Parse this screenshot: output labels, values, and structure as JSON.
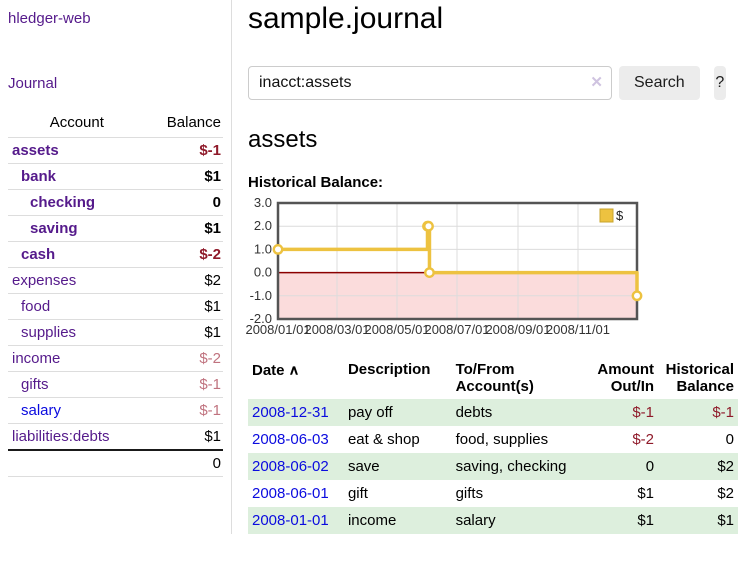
{
  "app": {
    "title": "hledger-web"
  },
  "sidebar": {
    "nav_journal": "Journal",
    "accounts": {
      "headers": {
        "account": "Account",
        "balance": "Balance"
      },
      "rows": [
        {
          "name": "assets",
          "indent": 1,
          "bold": true,
          "balance": "$-1",
          "balance_style": "neg-strong"
        },
        {
          "name": "bank",
          "indent": 2,
          "bold": true,
          "balance": "$1",
          "balance_style": ""
        },
        {
          "name": "checking",
          "indent": 3,
          "bold": true,
          "balance": "0",
          "balance_style": ""
        },
        {
          "name": "saving",
          "indent": 3,
          "bold": true,
          "balance": "$1",
          "balance_style": ""
        },
        {
          "name": "cash",
          "indent": 2,
          "bold": true,
          "balance": "$-2",
          "balance_style": "neg-strong"
        },
        {
          "name": "expenses",
          "indent": 1,
          "bold": false,
          "balance": "$2",
          "balance_style": ""
        },
        {
          "name": "food",
          "indent": 2,
          "bold": false,
          "balance": "$1",
          "balance_style": ""
        },
        {
          "name": "supplies",
          "indent": 2,
          "bold": false,
          "balance": "$1",
          "balance_style": ""
        },
        {
          "name": "income",
          "indent": 1,
          "bold": false,
          "balance": "$-2",
          "balance_style": "neg-soft"
        },
        {
          "name": "gifts",
          "indent": 2,
          "bold": false,
          "balance": "$-1",
          "balance_style": "neg-soft"
        },
        {
          "name": "salary",
          "indent": 2,
          "bold": false,
          "name_style": "unvisited",
          "balance": "$-1",
          "balance_style": "neg-soft"
        },
        {
          "name": "liabilities:debts",
          "indent": 1,
          "bold": false,
          "balance": "$1",
          "balance_style": ""
        }
      ],
      "total": "0"
    }
  },
  "main": {
    "title": "sample.journal",
    "search": {
      "value": "inacct:assets",
      "clear_icon": "✕",
      "button": "Search",
      "help": "?"
    },
    "account_heading": "assets",
    "chart_label": "Historical Balance:"
  },
  "chart_data": {
    "type": "line",
    "step": true,
    "title": "Historical Balance",
    "x_range": [
      "2008-01-01",
      "2008-12-31"
    ],
    "ylim": [
      -2,
      3
    ],
    "grid": true,
    "legend_position": "top-right",
    "legend": {
      "label": "$",
      "color": "#edc240"
    },
    "y_ticks": [
      {
        "v": 3,
        "label": "3.0"
      },
      {
        "v": 2,
        "label": "2.0"
      },
      {
        "v": 1,
        "label": "1.0"
      },
      {
        "v": 0,
        "label": "0.0"
      },
      {
        "v": -1,
        "label": "-1.0"
      },
      {
        "v": -2,
        "label": "-2.0"
      }
    ],
    "x_ticks": [
      {
        "date": "2008-01-01",
        "label": "2008/01/01"
      },
      {
        "date": "2008-03-01",
        "label": "2008/03/01"
      },
      {
        "date": "2008-05-01",
        "label": "2008/05/01"
      },
      {
        "date": "2008-07-01",
        "label": "2008/07/01"
      },
      {
        "date": "2008-09-01",
        "label": "2008/09/01"
      },
      {
        "date": "2008-11-01",
        "label": "2008/11/01"
      }
    ],
    "series": [
      {
        "name": "$",
        "color": "#edc240",
        "marker_fill": "#ffffff",
        "points": [
          {
            "date": "2008-01-01",
            "v": 1
          },
          {
            "date": "2008-06-01",
            "v": 2
          },
          {
            "date": "2008-06-02",
            "v": 2
          },
          {
            "date": "2008-06-03",
            "v": 0
          },
          {
            "date": "2008-12-31",
            "v": -1
          }
        ]
      }
    ],
    "colors": {
      "grid": "#dcdcdc",
      "border": "#545454",
      "below_zero_fill": "#fbdcdc",
      "zero_line": "#8b0000",
      "axis_text": "#333333"
    }
  },
  "register": {
    "headers": {
      "date": "Date",
      "sort_icon": "∧",
      "description": "Description",
      "account": "To/From Account(s)",
      "amount": "Amount Out/In",
      "balance": "Historical Balance"
    },
    "rows": [
      {
        "date": "2008-12-31",
        "description": "pay off",
        "accounts": "debts",
        "amount": "$-1",
        "amount_style": "neg",
        "balance": "$-1",
        "balance_style": "neg"
      },
      {
        "date": "2008-06-03",
        "description": "eat & shop",
        "accounts": "food, supplies",
        "amount": "$-2",
        "amount_style": "neg",
        "balance": "0",
        "balance_style": ""
      },
      {
        "date": "2008-06-02",
        "description": "save",
        "accounts": "saving, checking",
        "amount": "0",
        "amount_style": "",
        "balance": "$2",
        "balance_style": ""
      },
      {
        "date": "2008-06-01",
        "description": "gift",
        "accounts": "gifts",
        "amount": "$1",
        "amount_style": "",
        "balance": "$2",
        "balance_style": ""
      },
      {
        "date": "2008-01-01",
        "description": "income",
        "accounts": "salary",
        "amount": "$1",
        "amount_style": "",
        "balance": "$1",
        "balance_style": ""
      }
    ]
  }
}
